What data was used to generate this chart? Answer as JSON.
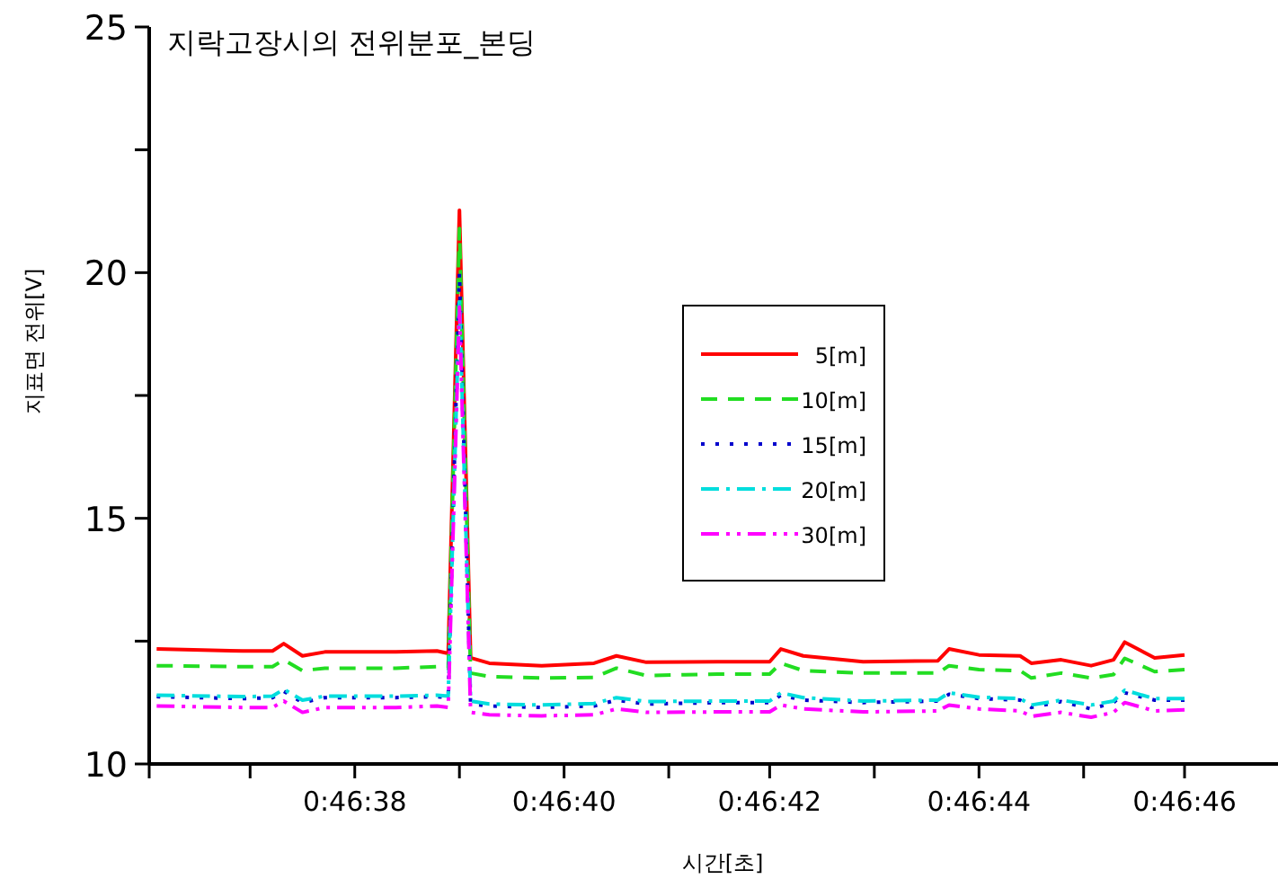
{
  "chart_data": {
    "type": "line",
    "title": "지락고장시의 전위분포_본딩",
    "xlabel": "시간[초]",
    "ylabel": "지표면 전위[V]",
    "x": [
      0.77669,
      0.77692,
      0.777,
      0.77703,
      0.77708,
      0.77714,
      0.77733,
      0.77744,
      0.77747,
      0.7775,
      0.77753,
      0.77758,
      0.77772,
      0.77786,
      0.77792,
      0.778,
      0.77819,
      0.77833,
      0.77836,
      0.77842,
      0.77858,
      0.77878,
      0.77881,
      0.77889,
      0.779,
      0.77903,
      0.77911,
      0.77919,
      0.77925,
      0.77928,
      0.77936,
      0.77944
    ],
    "series": [
      {
        "name": "5[m]",
        "color": "#ff0000",
        "line_style": "solid",
        "values": [
          12.34,
          12.3,
          12.3,
          12.45,
          12.2,
          12.28,
          12.28,
          12.3,
          12.25,
          21.27,
          12.16,
          12.05,
          12.0,
          12.05,
          12.2,
          12.07,
          12.08,
          12.08,
          12.34,
          12.2,
          12.08,
          12.1,
          12.34,
          12.22,
          12.2,
          12.05,
          12.12,
          12.0,
          12.12,
          12.48,
          12.16,
          12.22
        ]
      },
      {
        "name": "10[m]",
        "color": "#22dd22",
        "line_style": "dashed",
        "values": [
          12.0,
          11.98,
          11.98,
          12.12,
          11.9,
          11.95,
          11.95,
          11.98,
          11.95,
          20.9,
          11.85,
          11.78,
          11.75,
          11.76,
          11.95,
          11.8,
          11.83,
          11.83,
          12.05,
          11.9,
          11.85,
          11.85,
          12.0,
          11.92,
          11.9,
          11.75,
          11.85,
          11.75,
          11.82,
          12.15,
          11.88,
          11.92
        ]
      },
      {
        "name": "15[m]",
        "color": "#0000cc",
        "line_style": "dotted",
        "values": [
          11.37,
          11.33,
          11.35,
          11.48,
          11.25,
          11.35,
          11.35,
          11.37,
          11.35,
          20.0,
          11.22,
          11.18,
          11.15,
          11.18,
          11.3,
          11.22,
          11.25,
          11.25,
          11.4,
          11.3,
          11.25,
          11.28,
          11.42,
          11.33,
          11.3,
          11.15,
          11.27,
          11.12,
          11.25,
          11.45,
          11.3,
          11.3
        ]
      },
      {
        "name": "20[m]",
        "color": "#00dddd",
        "line_style": "dashdot",
        "values": [
          11.4,
          11.37,
          11.38,
          11.52,
          11.3,
          11.38,
          11.38,
          11.4,
          11.38,
          19.5,
          11.28,
          11.22,
          11.2,
          11.23,
          11.35,
          11.27,
          11.28,
          11.28,
          11.45,
          11.35,
          11.28,
          11.3,
          11.45,
          11.36,
          11.33,
          11.2,
          11.3,
          11.2,
          11.28,
          11.5,
          11.33,
          11.33
        ]
      },
      {
        "name": "30[m]",
        "color": "#ff00ff",
        "line_style": "dashdotdot",
        "values": [
          11.18,
          11.15,
          11.15,
          11.28,
          11.05,
          11.15,
          11.15,
          11.18,
          11.15,
          19.3,
          11.05,
          11.0,
          10.98,
          11.0,
          11.12,
          11.05,
          11.06,
          11.06,
          11.2,
          11.12,
          11.06,
          11.08,
          11.2,
          11.12,
          11.08,
          10.97,
          11.05,
          10.95,
          11.05,
          11.25,
          11.08,
          11.1
        ]
      }
    ],
    "xlim": [
      0.77667,
      0.77969
    ],
    "xticks": [
      {
        "value": 0.77667,
        "label": null
      },
      {
        "value": 0.77694,
        "label": null
      },
      {
        "value": 0.77722,
        "label": "0:46:38"
      },
      {
        "value": 0.7775,
        "label": null
      },
      {
        "value": 0.77778,
        "label": "0:46:40"
      },
      {
        "value": 0.77806,
        "label": null
      },
      {
        "value": 0.77833,
        "label": "0:46:42"
      },
      {
        "value": 0.77861,
        "label": null
      },
      {
        "value": 0.77889,
        "label": "0:46:44"
      },
      {
        "value": 0.77917,
        "label": null
      },
      {
        "value": 0.77944,
        "label": "0:46:46"
      }
    ],
    "ylim": [
      10,
      25
    ],
    "yticks": [
      10,
      {
        "value": 12.5,
        "label": null
      },
      15,
      {
        "value": 17.5,
        "label": null
      },
      20,
      {
        "value": 22.5,
        "label": null
      },
      25
    ],
    "grid": false,
    "legend": "center",
    "marker": "none"
  }
}
